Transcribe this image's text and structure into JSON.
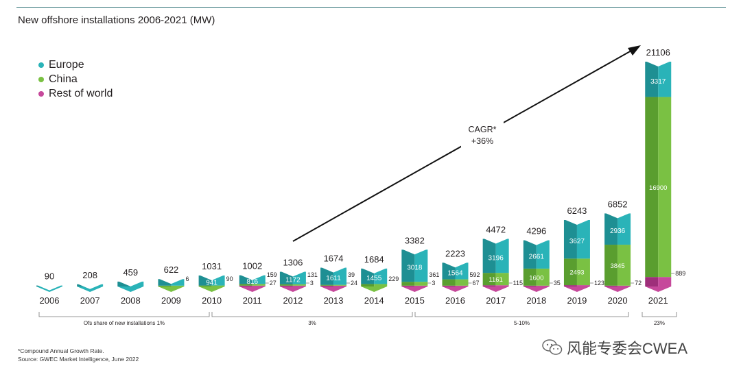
{
  "colors": {
    "europe": "#2ab3b8",
    "europe_dark": "#1e8f93",
    "china": "#7ac143",
    "china_dark": "#5a9e2f",
    "row": "#c6499b",
    "row_dark": "#9e2f7a",
    "axis": "#555555"
  },
  "chart_data": {
    "type": "bar",
    "title": "New offshore installations 2006-2021 (MW)",
    "xlabel": "",
    "ylabel": "MW",
    "legend": [
      "Europe",
      "China",
      "Rest of world"
    ],
    "legend_position": "top-left",
    "categories": [
      "2006",
      "2007",
      "2008",
      "2009",
      "2010",
      "2011",
      "2012",
      "2013",
      "2014",
      "2015",
      "2016",
      "2017",
      "2018",
      "2019",
      "2020",
      "2021"
    ],
    "totals": [
      90,
      208,
      459,
      622,
      1031,
      1002,
      1306,
      1674,
      1684,
      3382,
      2223,
      4472,
      4296,
      6243,
      6852,
      21106
    ],
    "series": [
      {
        "name": "Europe",
        "values": [
          90,
          208,
          459,
          616,
          941,
          816,
          1172,
          1611,
          1455,
          3018,
          1564,
          3196,
          2661,
          3627,
          2936,
          3317
        ],
        "labels": [
          "",
          "",
          "",
          "",
          "941",
          "816",
          "1172",
          "1611",
          "1455",
          "3018",
          "1564",
          "3196",
          "2661",
          "3627",
          "2936",
          "3317"
        ]
      },
      {
        "name": "China",
        "values": [
          0,
          0,
          0,
          6,
          90,
          159,
          131,
          39,
          229,
          361,
          592,
          1161,
          1600,
          2493,
          3845,
          16900
        ],
        "labels": [
          "",
          "",
          "",
          "6",
          "90",
          "159",
          "131",
          "39",
          "229",
          "361",
          "592",
          "1161",
          "1600",
          "2493",
          "3845",
          "16900"
        ]
      },
      {
        "name": "Rest of world",
        "values": [
          0,
          0,
          0,
          0,
          0,
          27,
          3,
          24,
          0,
          3,
          67,
          115,
          35,
          123,
          72,
          889
        ],
        "labels": [
          "",
          "",
          "",
          "",
          "",
          "27",
          "3",
          "24",
          "",
          "3",
          "67",
          "115",
          "35",
          "123",
          "72",
          "889"
        ]
      }
    ],
    "cagr": {
      "line1": "CAGR*",
      "line2": "+36%"
    },
    "share_brackets": [
      {
        "label": "Ofs share of new installations 1%",
        "from": "2006",
        "to": "2010"
      },
      {
        "label": "3%",
        "from": "2010",
        "to": "2015"
      },
      {
        "label": "5-10%",
        "from": "2015",
        "to": "2020"
      },
      {
        "label": "23%",
        "from": "2021",
        "to": "2021"
      }
    ]
  },
  "footnotes": {
    "note": "*Compound Annual Growth Rate.",
    "source": "Source: GWEC Market Intelligence, June 2022"
  },
  "watermark": "风能专委会CWEA"
}
